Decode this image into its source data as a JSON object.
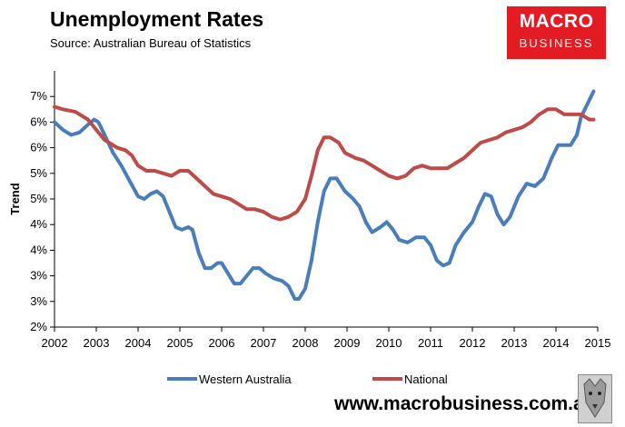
{
  "header": {
    "title": "Unemployment Rates",
    "subtitle": "Source: Australian Bureau of Statistics"
  },
  "logo": {
    "line1": "MACRO",
    "line2": "BUSINESS"
  },
  "footer": {
    "website": "www.macrobusiness.com.au"
  },
  "icons": {
    "footer_badge": "wolf-face-icon"
  },
  "colors": {
    "western_australia": "#4a7ebb",
    "national": "#be4b48"
  },
  "chart_data": {
    "type": "line",
    "xlabel": "",
    "ylabel": "Trend",
    "xlim": [
      2002,
      2015
    ],
    "ylim": [
      2,
      7
    ],
    "x_ticks": [
      "2002",
      "2003",
      "2004",
      "2005",
      "2006",
      "2007",
      "2008",
      "2009",
      "2010",
      "2011",
      "2012",
      "2013",
      "2014",
      "2015"
    ],
    "y_ticks": [
      {
        "value": 2,
        "label": "2%"
      },
      {
        "value": 2.5,
        "label": "3%"
      },
      {
        "value": 3,
        "label": "3%"
      },
      {
        "value": 3.5,
        "label": "4%"
      },
      {
        "value": 4,
        "label": "4%"
      },
      {
        "value": 4.5,
        "label": "5%"
      },
      {
        "value": 5,
        "label": "5%"
      },
      {
        "value": 5.5,
        "label": "6%"
      },
      {
        "value": 6,
        "label": "6%"
      },
      {
        "value": 6.5,
        "label": "7%"
      }
    ],
    "grid": false,
    "legend": "bottom",
    "series": [
      {
        "name": "Western Australia",
        "color": "#4a7ebb",
        "points": [
          [
            2002.0,
            6.0
          ],
          [
            2002.2,
            5.85
          ],
          [
            2002.4,
            5.75
          ],
          [
            2002.6,
            5.8
          ],
          [
            2002.8,
            5.95
          ],
          [
            2002.95,
            6.05
          ],
          [
            2003.05,
            6.0
          ],
          [
            2003.2,
            5.75
          ],
          [
            2003.4,
            5.4
          ],
          [
            2003.6,
            5.15
          ],
          [
            2003.8,
            4.85
          ],
          [
            2004.0,
            4.55
          ],
          [
            2004.15,
            4.5
          ],
          [
            2004.3,
            4.6
          ],
          [
            2004.45,
            4.65
          ],
          [
            2004.6,
            4.55
          ],
          [
            2004.75,
            4.25
          ],
          [
            2004.9,
            3.95
          ],
          [
            2005.05,
            3.9
          ],
          [
            2005.2,
            3.95
          ],
          [
            2005.3,
            3.9
          ],
          [
            2005.45,
            3.45
          ],
          [
            2005.6,
            3.15
          ],
          [
            2005.75,
            3.15
          ],
          [
            2005.9,
            3.25
          ],
          [
            2006.0,
            3.25
          ],
          [
            2006.15,
            3.05
          ],
          [
            2006.3,
            2.85
          ],
          [
            2006.45,
            2.85
          ],
          [
            2006.6,
            3.0
          ],
          [
            2006.75,
            3.15
          ],
          [
            2006.9,
            3.15
          ],
          [
            2007.05,
            3.05
          ],
          [
            2007.25,
            2.95
          ],
          [
            2007.45,
            2.9
          ],
          [
            2007.6,
            2.8
          ],
          [
            2007.75,
            2.55
          ],
          [
            2007.85,
            2.55
          ],
          [
            2008.0,
            2.75
          ],
          [
            2008.15,
            3.3
          ],
          [
            2008.3,
            4.05
          ],
          [
            2008.45,
            4.65
          ],
          [
            2008.6,
            4.9
          ],
          [
            2008.75,
            4.9
          ],
          [
            2008.95,
            4.65
          ],
          [
            2009.15,
            4.5
          ],
          [
            2009.3,
            4.35
          ],
          [
            2009.45,
            4.05
          ],
          [
            2009.6,
            3.85
          ],
          [
            2009.8,
            3.95
          ],
          [
            2009.95,
            4.05
          ],
          [
            2010.1,
            3.9
          ],
          [
            2010.25,
            3.7
          ],
          [
            2010.45,
            3.65
          ],
          [
            2010.65,
            3.75
          ],
          [
            2010.85,
            3.75
          ],
          [
            2011.0,
            3.6
          ],
          [
            2011.15,
            3.3
          ],
          [
            2011.3,
            3.2
          ],
          [
            2011.45,
            3.25
          ],
          [
            2011.6,
            3.6
          ],
          [
            2011.8,
            3.85
          ],
          [
            2012.0,
            4.05
          ],
          [
            2012.15,
            4.35
          ],
          [
            2012.3,
            4.6
          ],
          [
            2012.45,
            4.55
          ],
          [
            2012.6,
            4.2
          ],
          [
            2012.75,
            4.0
          ],
          [
            2012.9,
            4.15
          ],
          [
            2013.1,
            4.55
          ],
          [
            2013.3,
            4.8
          ],
          [
            2013.5,
            4.75
          ],
          [
            2013.7,
            4.9
          ],
          [
            2013.9,
            5.3
          ],
          [
            2014.05,
            5.55
          ],
          [
            2014.2,
            5.55
          ],
          [
            2014.35,
            5.55
          ],
          [
            2014.5,
            5.75
          ],
          [
            2014.6,
            6.1
          ],
          [
            2014.75,
            6.35
          ],
          [
            2014.9,
            6.6
          ]
        ]
      },
      {
        "name": "National",
        "color": "#be4b48",
        "points": [
          [
            2002.0,
            6.3
          ],
          [
            2002.2,
            6.25
          ],
          [
            2002.5,
            6.2
          ],
          [
            2002.8,
            6.05
          ],
          [
            2003.0,
            5.85
          ],
          [
            2003.2,
            5.65
          ],
          [
            2003.5,
            5.5
          ],
          [
            2003.7,
            5.45
          ],
          [
            2003.85,
            5.35
          ],
          [
            2004.0,
            5.15
          ],
          [
            2004.2,
            5.05
          ],
          [
            2004.4,
            5.05
          ],
          [
            2004.6,
            5.0
          ],
          [
            2004.8,
            4.95
          ],
          [
            2005.0,
            5.05
          ],
          [
            2005.2,
            5.05
          ],
          [
            2005.4,
            4.9
          ],
          [
            2005.6,
            4.75
          ],
          [
            2005.8,
            4.6
          ],
          [
            2006.0,
            4.55
          ],
          [
            2006.2,
            4.5
          ],
          [
            2006.4,
            4.4
          ],
          [
            2006.6,
            4.3
          ],
          [
            2006.8,
            4.3
          ],
          [
            2007.0,
            4.25
          ],
          [
            2007.2,
            4.15
          ],
          [
            2007.4,
            4.1
          ],
          [
            2007.6,
            4.15
          ],
          [
            2007.8,
            4.25
          ],
          [
            2008.0,
            4.5
          ],
          [
            2008.15,
            4.95
          ],
          [
            2008.3,
            5.45
          ],
          [
            2008.45,
            5.7
          ],
          [
            2008.6,
            5.7
          ],
          [
            2008.8,
            5.6
          ],
          [
            2008.95,
            5.4
          ],
          [
            2009.2,
            5.3
          ],
          [
            2009.4,
            5.25
          ],
          [
            2009.6,
            5.15
          ],
          [
            2009.8,
            5.05
          ],
          [
            2010.0,
            4.95
          ],
          [
            2010.2,
            4.9
          ],
          [
            2010.4,
            4.95
          ],
          [
            2010.6,
            5.1
          ],
          [
            2010.8,
            5.15
          ],
          [
            2011.0,
            5.1
          ],
          [
            2011.2,
            5.1
          ],
          [
            2011.4,
            5.1
          ],
          [
            2011.6,
            5.2
          ],
          [
            2011.8,
            5.3
          ],
          [
            2012.0,
            5.45
          ],
          [
            2012.2,
            5.6
          ],
          [
            2012.4,
            5.65
          ],
          [
            2012.6,
            5.7
          ],
          [
            2012.8,
            5.8
          ],
          [
            2013.0,
            5.85
          ],
          [
            2013.2,
            5.9
          ],
          [
            2013.4,
            6.0
          ],
          [
            2013.6,
            6.15
          ],
          [
            2013.8,
            6.25
          ],
          [
            2014.0,
            6.25
          ],
          [
            2014.2,
            6.15
          ],
          [
            2014.4,
            6.15
          ],
          [
            2014.6,
            6.15
          ],
          [
            2014.8,
            6.05
          ],
          [
            2014.9,
            6.05
          ]
        ]
      }
    ]
  }
}
